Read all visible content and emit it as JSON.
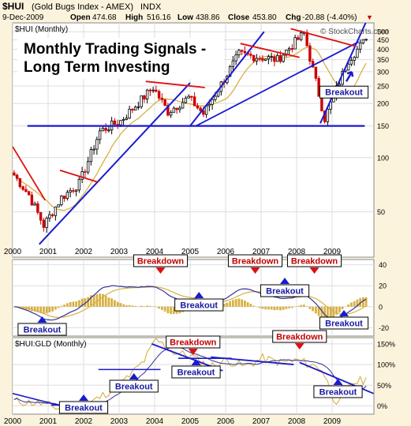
{
  "header": {
    "symbol": "$HUI",
    "name": "(Gold Bugs Index - AMEX)",
    "exchange": "INDX",
    "date": "9-Dec-2009",
    "open_label": "Open",
    "open": "474.68",
    "high_label": "High",
    "high": "516.16",
    "low_label": "Low",
    "low": "438.86",
    "close_label": "Close",
    "close": "453.80",
    "chg_label": "Chg",
    "chg": "-20.88 (-4.40%)",
    "chg_marker": "▼",
    "copyright": "© StockCharts.com"
  },
  "chart_data": [
    {
      "type": "candlestick",
      "panel_label": "$HUI (Monthly)",
      "title": "Monthly Trading Signals - Long Term Investing",
      "scale": "log",
      "ylim": [
        28,
        560
      ],
      "y_ticks": [
        50,
        100,
        150,
        200,
        250,
        300,
        350,
        400,
        450,
        500
      ],
      "x_ticks": [
        "2000",
        "2001",
        "2002",
        "2003",
        "2004",
        "2005",
        "2006",
        "2007",
        "2008",
        "2009"
      ],
      "grid": true,
      "moving_average": "yellow line",
      "series_close_approx": [
        {
          "date": "2000-01",
          "value": 80
        },
        {
          "date": "2000-06",
          "value": 62
        },
        {
          "date": "2000-11",
          "value": 42
        },
        {
          "date": "2001-05",
          "value": 60
        },
        {
          "date": "2001-11",
          "value": 72
        },
        {
          "date": "2002-06",
          "value": 140
        },
        {
          "date": "2003-01",
          "value": 160
        },
        {
          "date": "2003-12",
          "value": 245
        },
        {
          "date": "2004-05",
          "value": 180
        },
        {
          "date": "2004-12",
          "value": 215
        },
        {
          "date": "2005-05",
          "value": 175
        },
        {
          "date": "2006-05",
          "value": 375
        },
        {
          "date": "2007-06",
          "value": 350
        },
        {
          "date": "2008-03",
          "value": 490
        },
        {
          "date": "2008-10",
          "value": 165
        },
        {
          "date": "2009-06",
          "value": 350
        },
        {
          "date": "2009-12",
          "value": 454
        }
      ],
      "annotations": [
        {
          "text": "Breakout",
          "date": "2009-05",
          "value": 230
        }
      ]
    },
    {
      "type": "line+histogram",
      "indicator": "MACD",
      "ylim": [
        -28,
        45
      ],
      "y_ticks": [
        40,
        20,
        0,
        -20
      ],
      "annotations": [
        {
          "text": "Breakdown",
          "date": "2004-03"
        },
        {
          "text": "Breakdown",
          "date": "2006-11"
        },
        {
          "text": "Breakdown",
          "date": "2008-07"
        },
        {
          "text": "Breakout",
          "date": "2000-11"
        },
        {
          "text": "Breakout",
          "date": "2005-04"
        },
        {
          "text": "Breakout",
          "date": "2007-09"
        },
        {
          "text": "Breakout",
          "date": "2009-05"
        }
      ]
    },
    {
      "type": "line",
      "panel_label": "$HUI:GLD (Monthly)",
      "ylim": [
        -20,
        165
      ],
      "y_ticks": [
        "150%",
        "100%",
        "50%",
        "0%"
      ],
      "annotations": [
        {
          "text": "Breakdown",
          "date": "2005-02"
        },
        {
          "text": "Breakdown",
          "date": "2008-02"
        },
        {
          "text": "Breakout",
          "date": "2002-01"
        },
        {
          "text": "Breakout",
          "date": "2003-06"
        },
        {
          "text": "Breakout",
          "date": "2005-03"
        },
        {
          "text": "Breakout",
          "date": "2009-03"
        }
      ]
    }
  ]
}
